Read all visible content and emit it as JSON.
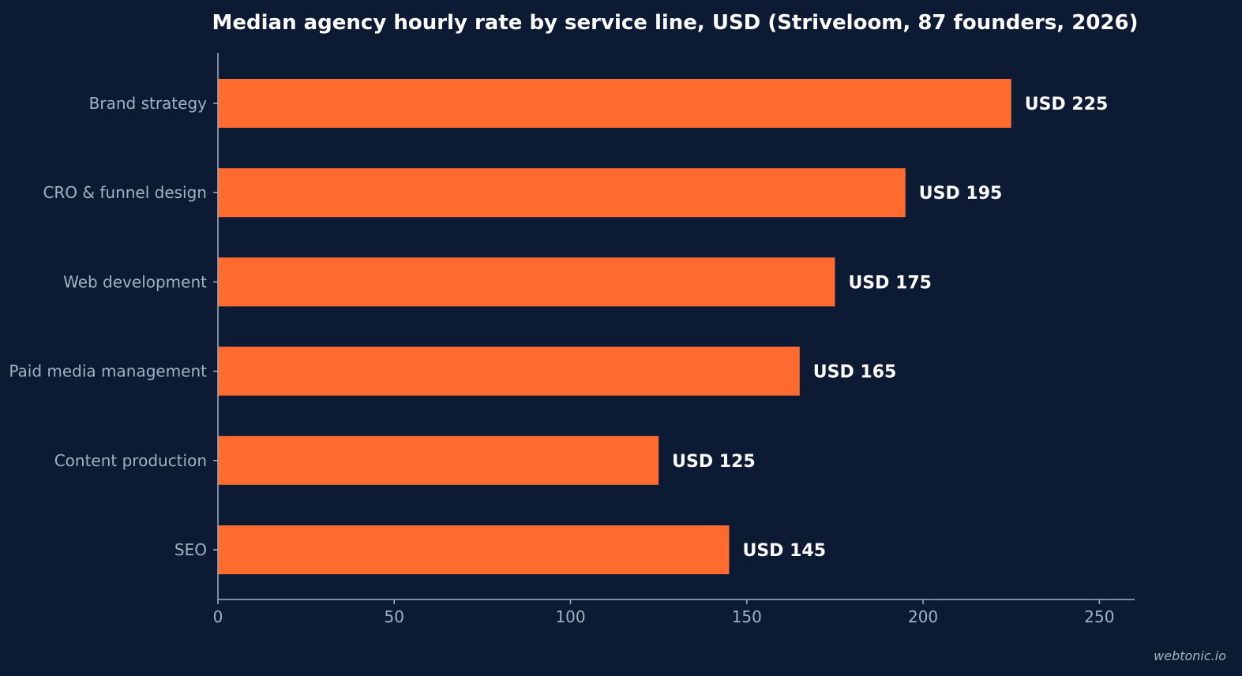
{
  "chart_data": {
    "type": "bar",
    "orientation": "horizontal",
    "title": "Median agency hourly rate by service line, USD (Striveloom, 87 founders, 2026)",
    "categories": [
      "Brand strategy",
      "CRO & funnel design",
      "Web development",
      "Paid media management",
      "Content production",
      "SEO"
    ],
    "values": [
      225,
      195,
      175,
      165,
      125,
      145
    ],
    "value_labels": [
      "USD 225",
      "USD 195",
      "USD 175",
      "USD 165",
      "USD 125",
      "USD 145"
    ],
    "xlabel": "",
    "ylabel": "",
    "xlim": [
      0,
      260
    ],
    "x_ticks": [
      0,
      50,
      100,
      150,
      200,
      250
    ],
    "grid": false,
    "legend": "none",
    "colors": {
      "background": "#0c1a33",
      "bar": "#ff6b2e",
      "axis": "#a3b0c4",
      "text": "#ffffff"
    }
  },
  "watermark": "webtonic.io"
}
